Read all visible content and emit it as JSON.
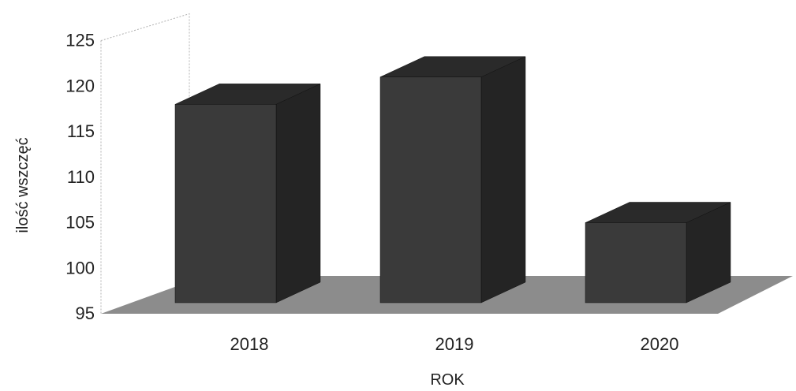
{
  "chart_data": {
    "type": "bar",
    "style": "3d",
    "title": "",
    "xlabel": "ROK",
    "ylabel": "ilość wszczęć",
    "categories": [
      "2018",
      "2019",
      "2020"
    ],
    "values": [
      118,
      121,
      105
    ],
    "ylim": [
      95,
      125
    ],
    "yticks": [
      95,
      100,
      105,
      110,
      115,
      120,
      125
    ],
    "grid": false,
    "legend": "none",
    "colors": {
      "bar_front": "#3a3a3a",
      "bar_top": "#2a2a2a",
      "bar_side": "#242424",
      "floor": "#8c8c8c",
      "wall_line": "#b0b0b0"
    }
  }
}
